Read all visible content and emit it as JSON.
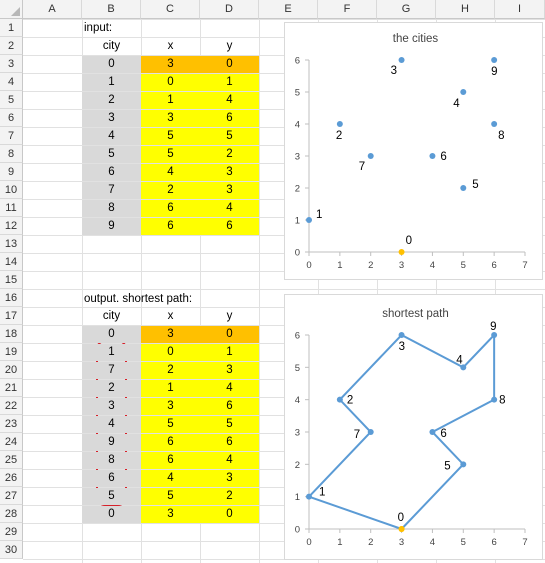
{
  "spreadsheet": {
    "columns": [
      "A",
      "B",
      "C",
      "D",
      "E",
      "F",
      "G",
      "H",
      "I"
    ],
    "rows": [
      "1",
      "2",
      "3",
      "4",
      "5",
      "6",
      "7",
      "8",
      "9",
      "10",
      "11",
      "12",
      "13",
      "14",
      "15",
      "16",
      "17",
      "18",
      "19",
      "20",
      "21",
      "22",
      "23",
      "24",
      "25",
      "26",
      "27",
      "28",
      "29",
      "30"
    ],
    "input_label": "input:",
    "output_label": "output.  shortest path:",
    "headers": {
      "city": "city",
      "x": "x",
      "y": "y"
    },
    "input_table": [
      [
        "0",
        "3",
        "0"
      ],
      [
        "1",
        "0",
        "1"
      ],
      [
        "2",
        "1",
        "4"
      ],
      [
        "3",
        "3",
        "6"
      ],
      [
        "4",
        "5",
        "5"
      ],
      [
        "5",
        "5",
        "2"
      ],
      [
        "6",
        "4",
        "3"
      ],
      [
        "7",
        "2",
        "3"
      ],
      [
        "8",
        "6",
        "4"
      ],
      [
        "9",
        "6",
        "6"
      ]
    ],
    "output_table": [
      [
        "0",
        "3",
        "0"
      ],
      [
        "1",
        "0",
        "1"
      ],
      [
        "7",
        "2",
        "3"
      ],
      [
        "2",
        "1",
        "4"
      ],
      [
        "3",
        "3",
        "6"
      ],
      [
        "4",
        "5",
        "5"
      ],
      [
        "9",
        "6",
        "6"
      ],
      [
        "8",
        "6",
        "4"
      ],
      [
        "6",
        "4",
        "3"
      ],
      [
        "5",
        "5",
        "2"
      ],
      [
        "0",
        "3",
        "0"
      ]
    ]
  },
  "colors": {
    "city_fill": "#d9d9d9",
    "highlight_fill": "#ffc000",
    "value_fill": "#ffff00",
    "series_color": "#5b9bd5",
    "start_point_color": "#ffc000",
    "marker_color": "#d6202a"
  },
  "chart_data": [
    {
      "type": "scatter",
      "title": "the cities",
      "xlim": [
        0,
        7
      ],
      "ylim": [
        0,
        6
      ],
      "xticks": [
        "0",
        "1",
        "2",
        "3",
        "4",
        "5",
        "6",
        "7"
      ],
      "yticks": [
        "0",
        "1",
        "2",
        "3",
        "4",
        "5",
        "6"
      ],
      "points": [
        {
          "label": "0",
          "x": 3,
          "y": 0
        },
        {
          "label": "1",
          "x": 0,
          "y": 1
        },
        {
          "label": "2",
          "x": 1,
          "y": 4
        },
        {
          "label": "3",
          "x": 3,
          "y": 6
        },
        {
          "label": "4",
          "x": 5,
          "y": 5
        },
        {
          "label": "5",
          "x": 5,
          "y": 2
        },
        {
          "label": "6",
          "x": 4,
          "y": 3
        },
        {
          "label": "7",
          "x": 2,
          "y": 3
        },
        {
          "label": "8",
          "x": 6,
          "y": 4
        },
        {
          "label": "9",
          "x": 6,
          "y": 6
        }
      ]
    },
    {
      "type": "line",
      "title": "shortest path",
      "xlim": [
        0,
        7
      ],
      "ylim": [
        0,
        6
      ],
      "xticks": [
        "0",
        "1",
        "2",
        "3",
        "4",
        "5",
        "6",
        "7"
      ],
      "yticks": [
        "0",
        "1",
        "2",
        "3",
        "4",
        "5",
        "6"
      ],
      "points": [
        {
          "label": "0",
          "x": 3,
          "y": 0
        },
        {
          "label": "1",
          "x": 0,
          "y": 1
        },
        {
          "label": "7",
          "x": 2,
          "y": 3
        },
        {
          "label": "2",
          "x": 1,
          "y": 4
        },
        {
          "label": "3",
          "x": 3,
          "y": 6
        },
        {
          "label": "4",
          "x": 5,
          "y": 5
        },
        {
          "label": "9",
          "x": 6,
          "y": 6
        },
        {
          "label": "8",
          "x": 6,
          "y": 4
        },
        {
          "label": "6",
          "x": 4,
          "y": 3
        },
        {
          "label": "5",
          "x": 5,
          "y": 2
        },
        {
          "label": "0",
          "x": 3,
          "y": 0
        }
      ]
    }
  ]
}
